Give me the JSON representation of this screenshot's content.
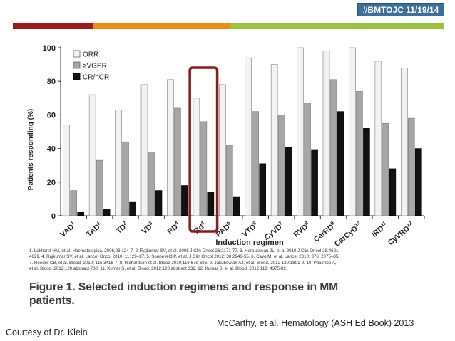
{
  "header": {
    "tag": "#BMTOJC 11/19/14"
  },
  "colors": {
    "band_red": "#9c1b1b",
    "band_orange": "#f28a15",
    "band_green": "#9bc33c",
    "tag_bg": "#3c6f9c",
    "highlight": "#8b1a1a"
  },
  "chart_data": {
    "type": "bar",
    "ylabel": "Patients responding (%)",
    "xlabel": "Induction regimen",
    "ylim": [
      0,
      100
    ],
    "yticks": [
      0,
      20,
      40,
      60,
      80,
      100
    ],
    "categories": [
      {
        "name": "VAD",
        "sup": "1"
      },
      {
        "name": "TAD",
        "sup": "1"
      },
      {
        "name": "TD",
        "sup": "2"
      },
      {
        "name": "VD",
        "sup": "3"
      },
      {
        "name": "RD",
        "sup": "4"
      },
      {
        "name": "Rd",
        "sup": "4"
      },
      {
        "name": "PAD",
        "sup": "5"
      },
      {
        "name": "VTD",
        "sup": "6"
      },
      {
        "name": "CyVD",
        "sup": "7"
      },
      {
        "name": "RVD",
        "sup": "8"
      },
      {
        "name": "CarRD",
        "sup": "9"
      },
      {
        "name": "CarCyD",
        "sup": "10"
      },
      {
        "name": "IRD",
        "sup": "11"
      },
      {
        "name": "CyVRD",
        "sup": "12"
      }
    ],
    "series": [
      {
        "name": "ORR",
        "color": "#f2f2f2",
        "values": [
          54,
          72,
          63,
          78,
          81,
          70,
          78,
          94,
          90,
          100,
          98,
          100,
          92,
          88
        ]
      },
      {
        "name": "≥VGPR",
        "color": "#a6a6a6",
        "values": [
          15,
          33,
          44,
          38,
          64,
          56,
          42,
          62,
          60,
          67,
          81,
          74,
          55,
          58
        ]
      },
      {
        "name": "CR/nCR",
        "color": "#111111",
        "values": [
          2,
          4,
          8,
          15,
          18,
          14,
          11,
          31,
          41,
          39,
          62,
          52,
          28,
          40
        ]
      }
    ],
    "highlight_category": "Rd",
    "legend": "top-left",
    "grid": false
  },
  "references": [
    "1. Lokhorst HM, et al. Haematologica. 2006;93:124-7. 2. Rajkumar SV, et al. 2008 J Clin Oncol 26:2171-77. 3. Harousseau JL, et al 2010 J Clin Oncol 28:4621–",
    "4629. 4. Rajkumar SV, et al. Lancet Oncol 2010; 11: 29–37. 5. Sonneveld P, et al. J Clin Oncol 2012; 30:2946-55. 6. Cavo M, et al. Lancet 2010; 376: 2075–85.",
    "7. Reeder CB, et al. Blood. 2010; 115:3416-7. 8. Richardson et al. Blood 2010;116:679-686. 9. Jakubowiak AJ, et al. Blood. 2012 120:1801-9. 10. Palumbo A,",
    "et al. Blood. 2012;120:abstract 730. 11. Kumar S, et al. Blood. 2012;120:abstract 332. 12. Kumar S, et al. Blood. 2012 119: 4375-82."
  ],
  "figure_caption": "Figure 1.  Selected induction regimens and response in MM patients.",
  "citation": "McCarthy, et al. Hematology (ASH Ed Book) 2013",
  "courtesy": "Courtesy of Dr. Klein"
}
